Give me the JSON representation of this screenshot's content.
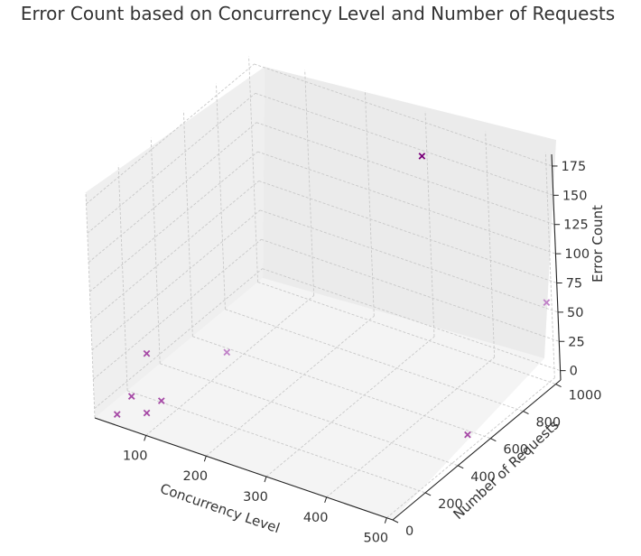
{
  "chart_data": {
    "type": "scatter",
    "projection": "3d",
    "title": "Error Count based on Concurrency Level and Number of Requests",
    "xlabel": "Concurrency Level",
    "ylabel": "Number of Requests",
    "zlabel": "Error Count",
    "xlim": [
      15,
      510
    ],
    "ylim": [
      0,
      1030
    ],
    "zlim": [
      -8,
      185
    ],
    "xticks": [
      "100",
      "200",
      "300",
      "400",
      "500"
    ],
    "yticks": [
      "0",
      "200",
      "400",
      "600",
      "800",
      "1000"
    ],
    "zticks": [
      "0",
      "25",
      "50",
      "75",
      "100",
      "125",
      "150",
      "175"
    ],
    "grid": true,
    "marker": "x",
    "colors": {
      "light": "#c082c8",
      "mid": "#a64aa6",
      "dark": "#7a007a"
    },
    "points": [
      {
        "x": 50,
        "y": 10,
        "z": 0,
        "shade": "mid"
      },
      {
        "x": 100,
        "y": 10,
        "z": 10,
        "shade": "mid"
      },
      {
        "x": 50,
        "y": 100,
        "z": 5,
        "shade": "mid"
      },
      {
        "x": 100,
        "y": 100,
        "z": 10,
        "shade": "mid"
      },
      {
        "x": 50,
        "y": 200,
        "z": 30,
        "shade": "mid"
      },
      {
        "x": 100,
        "y": 500,
        "z": 5,
        "shade": "light"
      },
      {
        "x": 500,
        "y": 500,
        "z": 5,
        "shade": "mid"
      },
      {
        "x": 500,
        "y": 1000,
        "z": 60,
        "shade": "light"
      },
      {
        "x": 300,
        "y": 1000,
        "z": 150,
        "shade": "dark"
      }
    ]
  }
}
